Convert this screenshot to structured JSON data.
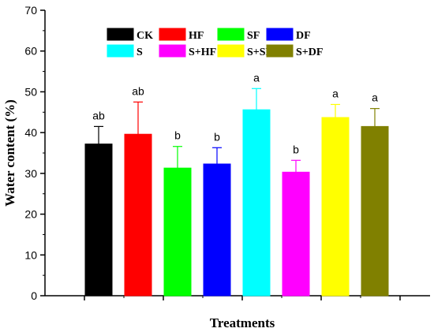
{
  "chart_data": {
    "type": "bar",
    "categories": [
      "CK",
      "HF",
      "SF",
      "DF",
      "S",
      "S+HF",
      "S+SF",
      "S+DF"
    ],
    "values": [
      37.2,
      39.6,
      31.3,
      32.3,
      45.6,
      30.3,
      43.7,
      41.5
    ],
    "errors": [
      4.3,
      7.9,
      5.3,
      4.0,
      5.2,
      2.9,
      3.2,
      4.4
    ],
    "significance": [
      "ab",
      "ab",
      "b",
      "b",
      "a",
      "b",
      "a",
      "a"
    ],
    "colors": [
      "#000000",
      "#ff0000",
      "#00ff00",
      "#0000ff",
      "#00ffff",
      "#ff00ff",
      "#ffff00",
      "#808000"
    ],
    "title": "",
    "xlabel": "Treatments",
    "ylabel": "Water content (%)",
    "ylim": [
      0,
      70
    ],
    "yticks": [
      0,
      10,
      20,
      30,
      40,
      50,
      60,
      70
    ],
    "grid": false,
    "legend_position": "top"
  }
}
